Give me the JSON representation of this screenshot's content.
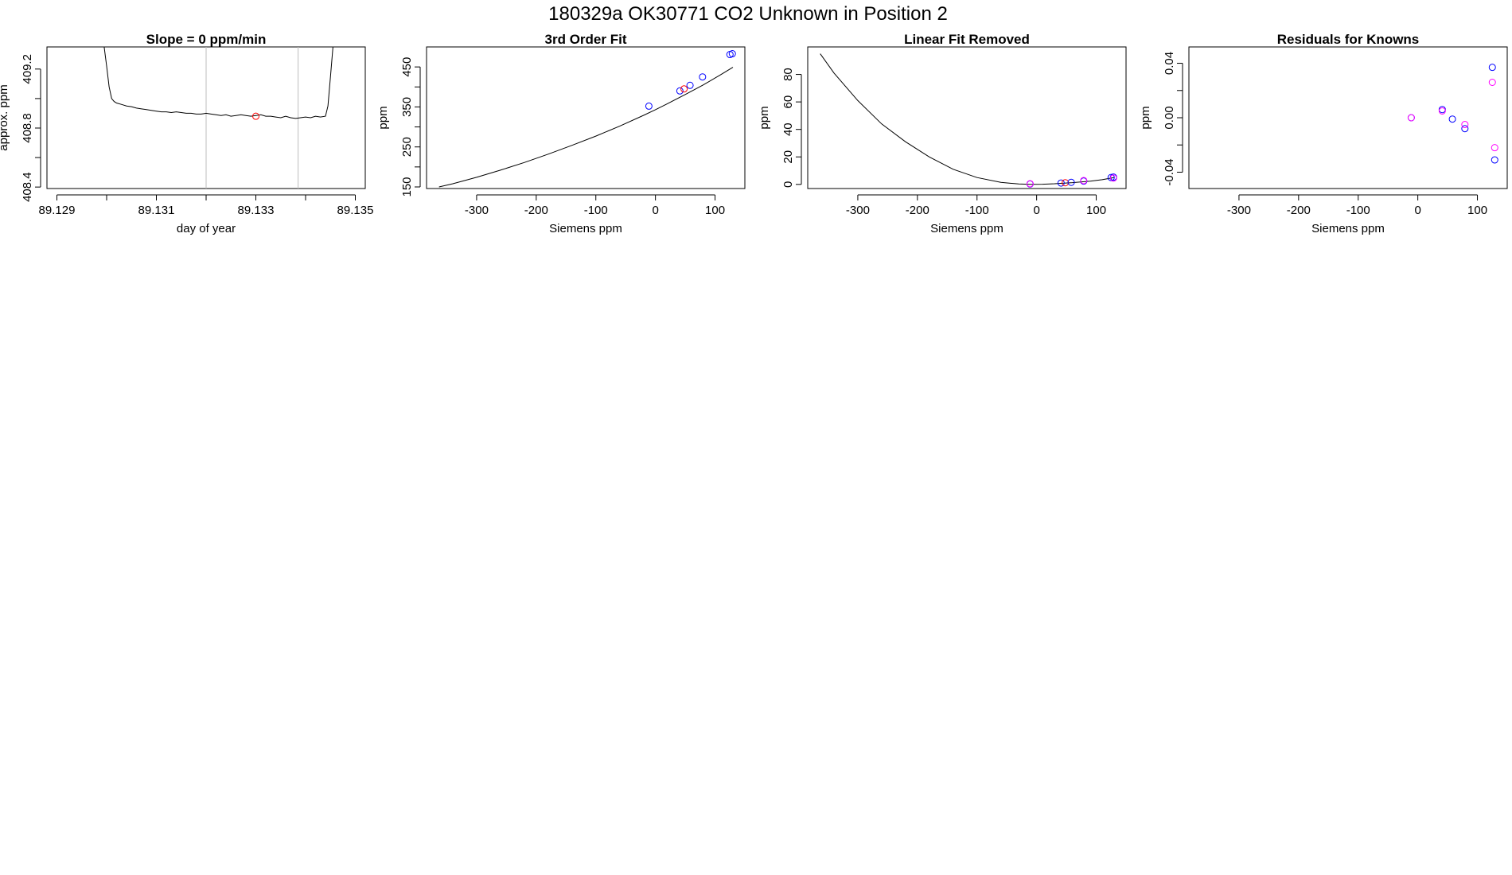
{
  "figure": {
    "title": "180329a      OK30771    CO2 Unknown in Position  2"
  },
  "colors": {
    "line": "#000000",
    "frame": "#000000",
    "window_lines": "#bebebe",
    "known_points": "#0000ff",
    "unknown_points": "#ff0000",
    "residual_alt_points": "#ff00ff"
  },
  "chart_data": [
    {
      "type": "line",
      "title": "Slope =  0  ppm/min",
      "xlabel": "day of year",
      "ylabel": "approx. ppm",
      "xlim": [
        89.1288,
        89.1352
      ],
      "ylim": [
        408.39,
        409.35
      ],
      "xticks": [
        89.129,
        89.13,
        89.131,
        89.132,
        89.133,
        89.134,
        89.135
      ],
      "xtick_labels": [
        "89.129",
        "",
        "89.131",
        "",
        "89.133",
        "",
        "89.135"
      ],
      "yticks": [
        408.4,
        408.6,
        408.8,
        409.0,
        409.2
      ],
      "ytick_labels": [
        "408.4",
        "",
        "408.8",
        "",
        "409.2"
      ],
      "window_lines_x": [
        89.132,
        89.13385
      ],
      "series": [
        {
          "x": [
            89.12995,
            89.13,
            89.13005,
            89.1301,
            89.13015,
            89.1302,
            89.1303,
            89.1304,
            89.1305,
            89.1306,
            89.1307,
            89.1308,
            89.1309,
            89.131,
            89.1311,
            89.1312,
            89.1313,
            89.1314,
            89.1315,
            89.1316,
            89.1317,
            89.1318,
            89.1319,
            89.132,
            89.1321,
            89.1322,
            89.1323,
            89.1324,
            89.1325,
            89.1326,
            89.1327,
            89.1328,
            89.1329,
            89.133,
            89.1331,
            89.1332,
            89.1333,
            89.1334,
            89.1335,
            89.1336,
            89.1337,
            89.1338,
            89.1339,
            89.134,
            89.1341,
            89.1342,
            89.1343,
            89.1344,
            89.13445,
            89.1345,
            89.13455
          ],
          "values": [
            409.35,
            409.22,
            409.08,
            409.0,
            408.98,
            408.97,
            408.96,
            408.95,
            408.945,
            408.935,
            408.93,
            408.925,
            408.92,
            408.915,
            408.91,
            408.91,
            408.905,
            408.91,
            408.905,
            408.9,
            408.9,
            408.895,
            408.895,
            408.9,
            408.895,
            408.89,
            408.885,
            408.89,
            408.88,
            408.885,
            408.89,
            408.885,
            408.88,
            408.885,
            408.89,
            408.88,
            408.88,
            408.875,
            408.87,
            408.88,
            408.87,
            408.865,
            408.87,
            408.875,
            408.87,
            408.88,
            408.875,
            408.88,
            408.95,
            409.15,
            409.35
          ]
        }
      ],
      "points": [
        {
          "x": 89.133,
          "y": 408.88,
          "role": "unknown"
        }
      ]
    },
    {
      "type": "line",
      "title": "3rd Order Fit",
      "xlabel": "Siemens ppm",
      "ylabel": "ppm",
      "xlim": [
        -384,
        150
      ],
      "ylim": [
        146,
        500
      ],
      "xticks": [
        -300,
        -200,
        -100,
        0,
        100
      ],
      "xtick_labels": [
        "-300",
        "-200",
        "-100",
        "0",
        "100"
      ],
      "yticks": [
        150,
        200,
        250,
        300,
        350,
        400,
        450
      ],
      "ytick_labels": [
        "150",
        "",
        "250",
        "",
        "350",
        "",
        "450"
      ],
      "curve": {
        "x": [
          -363,
          -340,
          -300,
          -260,
          -220,
          -180,
          -140,
          -100,
          -60,
          -20,
          0,
          20,
          50,
          80,
          110,
          130
        ],
        "values": [
          150,
          158,
          174,
          192,
          211,
          232,
          254,
          277,
          302,
          329,
          343,
          358,
          381,
          405,
          431,
          449
        ]
      },
      "points": [
        {
          "x": -11,
          "y": 352,
          "role": "known"
        },
        {
          "x": 41,
          "y": 390,
          "role": "known"
        },
        {
          "x": 48,
          "y": 395,
          "role": "unknown"
        },
        {
          "x": 58,
          "y": 404,
          "role": "known"
        },
        {
          "x": 79,
          "y": 425,
          "role": "known"
        },
        {
          "x": 125,
          "y": 481,
          "role": "known"
        },
        {
          "x": 129,
          "y": 483,
          "role": "known"
        }
      ]
    },
    {
      "type": "line",
      "title": "Linear Fit Removed",
      "xlabel": "Siemens ppm",
      "ylabel": "ppm",
      "xlim": [
        -384,
        150
      ],
      "ylim": [
        -3,
        100
      ],
      "xticks": [
        -300,
        -200,
        -100,
        0,
        100
      ],
      "xtick_labels": [
        "-300",
        "-200",
        "-100",
        "0",
        "100"
      ],
      "yticks": [
        0,
        20,
        40,
        60,
        80
      ],
      "ytick_labels": [
        "0",
        "20",
        "40",
        "60",
        "80"
      ],
      "curve": {
        "x": [
          -363,
          -340,
          -300,
          -260,
          -220,
          -180,
          -140,
          -100,
          -60,
          -30,
          -10,
          10,
          30,
          60,
          90,
          110,
          130
        ],
        "values": [
          95,
          81,
          61,
          44,
          31,
          20,
          11,
          5,
          1.5,
          0.3,
          0,
          0.1,
          0.5,
          1.3,
          2.4,
          3.4,
          5
        ]
      },
      "points": [
        {
          "x": -11,
          "y": 0.3,
          "role": "known"
        },
        {
          "x": -11,
          "y": 0.5,
          "role": "residual_alt"
        },
        {
          "x": 41,
          "y": 1.0,
          "role": "known"
        },
        {
          "x": 48,
          "y": 1.2,
          "role": "unknown"
        },
        {
          "x": 58,
          "y": 1.5,
          "role": "known"
        },
        {
          "x": 79,
          "y": 2.4,
          "role": "known"
        },
        {
          "x": 79,
          "y": 2.8,
          "role": "residual_alt"
        },
        {
          "x": 125,
          "y": 5.0,
          "role": "known"
        },
        {
          "x": 129,
          "y": 5.3,
          "role": "known"
        },
        {
          "x": 129,
          "y": 4.6,
          "role": "residual_alt"
        }
      ]
    },
    {
      "type": "scatter",
      "title": "Residuals for Knowns",
      "xlabel": "Siemens ppm",
      "ylabel": "ppm",
      "xlim": [
        -384,
        150
      ],
      "ylim": [
        -0.052,
        0.052
      ],
      "xticks": [
        -300,
        -200,
        -100,
        0,
        100
      ],
      "xtick_labels": [
        "-300",
        "-200",
        "-100",
        "0",
        "100"
      ],
      "yticks": [
        -0.04,
        -0.02,
        0.0,
        0.02,
        0.04
      ],
      "ytick_labels": [
        "-0.04",
        "",
        "0.00",
        "",
        "0.04"
      ],
      "points": [
        {
          "x": -11,
          "y": 0.0,
          "role": "known"
        },
        {
          "x": -11,
          "y": 0.0,
          "role": "residual_alt"
        },
        {
          "x": 41,
          "y": 0.006,
          "role": "known"
        },
        {
          "x": 41,
          "y": 0.005,
          "role": "residual_alt"
        },
        {
          "x": 58,
          "y": -0.001,
          "role": "known"
        },
        {
          "x": 79,
          "y": -0.008,
          "role": "known"
        },
        {
          "x": 79,
          "y": -0.005,
          "role": "residual_alt"
        },
        {
          "x": 125,
          "y": 0.037,
          "role": "known"
        },
        {
          "x": 125,
          "y": 0.026,
          "role": "residual_alt"
        },
        {
          "x": 129,
          "y": -0.031,
          "role": "known"
        },
        {
          "x": 129,
          "y": -0.022,
          "role": "residual_alt"
        }
      ]
    }
  ]
}
